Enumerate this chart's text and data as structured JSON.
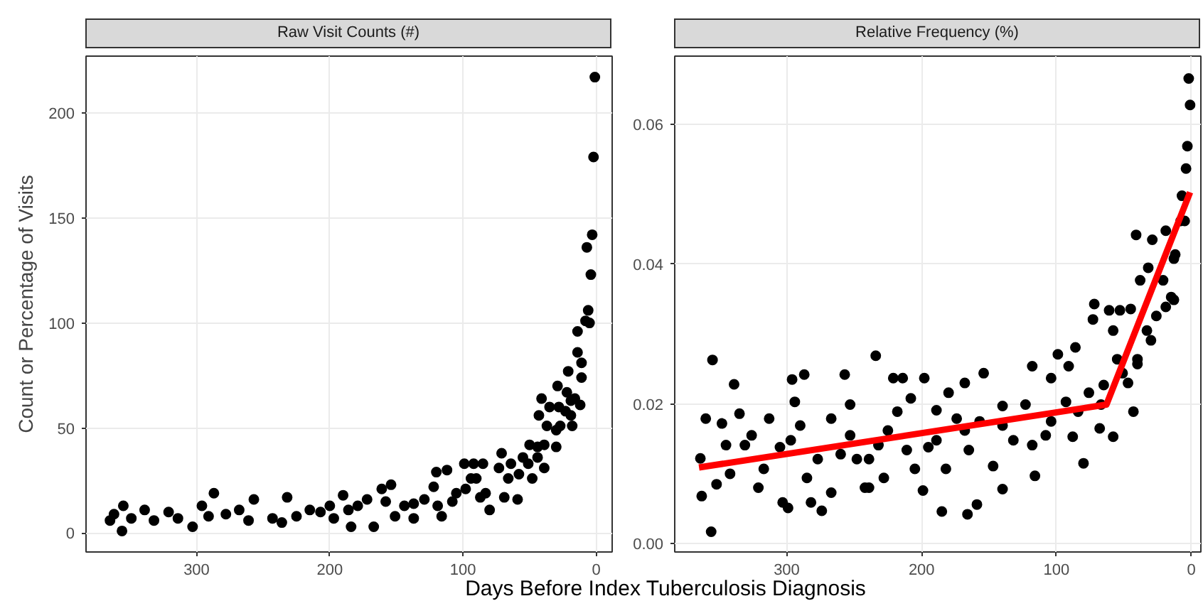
{
  "chart_data": [
    {
      "type": "scatter",
      "title": "Raw Visit Counts (#)",
      "xlabel": "Days Before Index Tuberculosis Diagnosis",
      "ylabel": "Count or Percentage of Visits",
      "xlim": [
        383,
        -12
      ],
      "ylim": [
        -9,
        227
      ],
      "xticks": [
        300,
        200,
        100,
        0
      ],
      "yticks": [
        0,
        50,
        100,
        150,
        200
      ],
      "grid": true,
      "series": [
        {
          "marker": "circle",
          "color": "#000000",
          "x": [
            1,
            2,
            3,
            7,
            4,
            6,
            8,
            5,
            14,
            14,
            11,
            21,
            11,
            29,
            22,
            16,
            41,
            12,
            35,
            28,
            43,
            19,
            37,
            27,
            18,
            50,
            39,
            30,
            71,
            44,
            51,
            99,
            92,
            85,
            112,
            120,
            73,
            58,
            39,
            48,
            154,
            161,
            94,
            80,
            59,
            69,
            87,
            108,
            116,
            137,
            151,
            167,
            184,
            190,
            200,
            215,
            232,
            257,
            287,
            296,
            303,
            321,
            339,
            356,
            355,
            365,
            362,
            349,
            332,
            314,
            278,
            268,
            243,
            225,
            207,
            197,
            179,
            172,
            158,
            144,
            129,
            122,
            105,
            98,
            90,
            83,
            66,
            64,
            55,
            44,
            30,
            23,
            19,
            291,
            261,
            236,
            186,
            137,
            119
          ],
          "values": [
            217,
            179,
            142,
            136,
            123,
            106,
            101,
            100,
            96,
            86,
            81,
            77,
            74,
            70,
            67,
            64,
            64,
            61,
            60,
            60,
            56,
            56,
            51,
            51,
            51,
            42,
            42,
            41,
            38,
            36,
            33,
            33,
            33,
            33,
            30,
            29,
            31,
            28,
            31,
            26,
            23,
            21,
            26,
            11,
            16,
            17,
            17,
            15,
            8,
            14,
            8,
            3,
            3,
            18,
            13,
            11,
            17,
            16,
            19,
            13,
            3,
            10,
            11,
            1,
            13,
            6,
            9,
            7,
            6,
            7,
            9,
            11,
            7,
            8,
            10,
            7,
            13,
            16,
            15,
            13,
            16,
            22,
            19,
            21,
            26,
            19,
            26,
            33,
            36,
            41,
            49,
            58,
            63,
            8,
            6,
            5,
            11,
            7,
            13
          ]
        }
      ]
    },
    {
      "type": "scatter",
      "title": "Relative Frequency (%)",
      "xlim": [
        383,
        -7
      ],
      "ylim": [
        -0.0012,
        0.0698
      ],
      "xticks": [
        300,
        200,
        100,
        0
      ],
      "yticks": [
        {
          "value": 0,
          "label": "0.00"
        },
        {
          "value": 0.02,
          "label": "0.02"
        },
        {
          "value": 0.04,
          "label": "0.04"
        },
        {
          "value": 0.06,
          "label": "0.06"
        }
      ],
      "grid": true,
      "series": [
        {
          "marker": "circle",
          "color": "#000000",
          "x": [
            2,
            1,
            3,
            4,
            7,
            5,
            19,
            41,
            29,
            13,
            32,
            38,
            21,
            13,
            19,
            72,
            61,
            53,
            45,
            73,
            58,
            30,
            86,
            55,
            40,
            99,
            118,
            91,
            154,
            168,
            234,
            355,
            339,
            296,
            287,
            257,
            253,
            294,
            221,
            198,
            214,
            189,
            208,
            180,
            140,
            123,
            104,
            67,
            43,
            58,
            68,
            88,
            80,
            116,
            140,
            159,
            166,
            185,
            199,
            228,
            239,
            267,
            274,
            282,
            299,
            303,
            356,
            363,
            352,
            342,
            335,
            360,
            348,
            364,
            331,
            313,
            321,
            305,
            290,
            285,
            267,
            253,
            242,
            239,
            225,
            211,
            205,
            195,
            182,
            174,
            165,
            157,
            147,
            132,
            118,
            108,
            104,
            93,
            84,
            76,
            65,
            47,
            51,
            40,
            33,
            26,
            12,
            8,
            15,
            189,
            168,
            140,
            218,
            232,
            248,
            260,
            277,
            297,
            317,
            326,
            345
          ],
          "values": [
            0.0666,
            0.0628,
            0.0569,
            0.0537,
            0.0498,
            0.0462,
            0.0448,
            0.0442,
            0.0435,
            0.0408,
            0.0395,
            0.0377,
            0.0377,
            0.0349,
            0.0339,
            0.0343,
            0.0334,
            0.0334,
            0.0336,
            0.0321,
            0.0305,
            0.0291,
            0.0281,
            0.0264,
            0.0257,
            0.0271,
            0.0254,
            0.0254,
            0.0244,
            0.023,
            0.0269,
            0.0263,
            0.0228,
            0.0235,
            0.0242,
            0.0242,
            0.0199,
            0.0203,
            0.0237,
            0.0237,
            0.0237,
            0.0191,
            0.0208,
            0.0216,
            0.0197,
            0.0199,
            0.0237,
            0.0199,
            0.0189,
            0.0153,
            0.0165,
            0.0153,
            0.0115,
            0.0097,
            0.0078,
            0.0056,
            0.0042,
            0.0046,
            0.0076,
            0.0094,
            0.008,
            0.0073,
            0.0047,
            0.0059,
            0.0051,
            0.0059,
            0.0017,
            0.0068,
            0.0085,
            0.01,
            0.0186,
            0.0179,
            0.0172,
            0.0122,
            0.0141,
            0.0179,
            0.008,
            0.0138,
            0.0169,
            0.0094,
            0.0179,
            0.0155,
            0.008,
            0.0121,
            0.0162,
            0.0134,
            0.0107,
            0.0138,
            0.0107,
            0.0179,
            0.0134,
            0.0175,
            0.0111,
            0.0148,
            0.0141,
            0.0155,
            0.0175,
            0.0203,
            0.0189,
            0.0216,
            0.0227,
            0.023,
            0.0244,
            0.0264,
            0.0305,
            0.0326,
            0.0414,
            0.0462,
            0.0353,
            0.0148,
            0.0162,
            0.0169,
            0.0189,
            0.0141,
            0.0121,
            0.0128,
            0.0121,
            0.0148,
            0.0107,
            0.0155,
            0.0141
          ]
        },
        {
          "type": "line",
          "color": "#ff0000",
          "x": [
            365,
            63,
            1
          ],
          "values": [
            0.0109,
            0.0199,
            0.0503
          ]
        }
      ]
    }
  ]
}
